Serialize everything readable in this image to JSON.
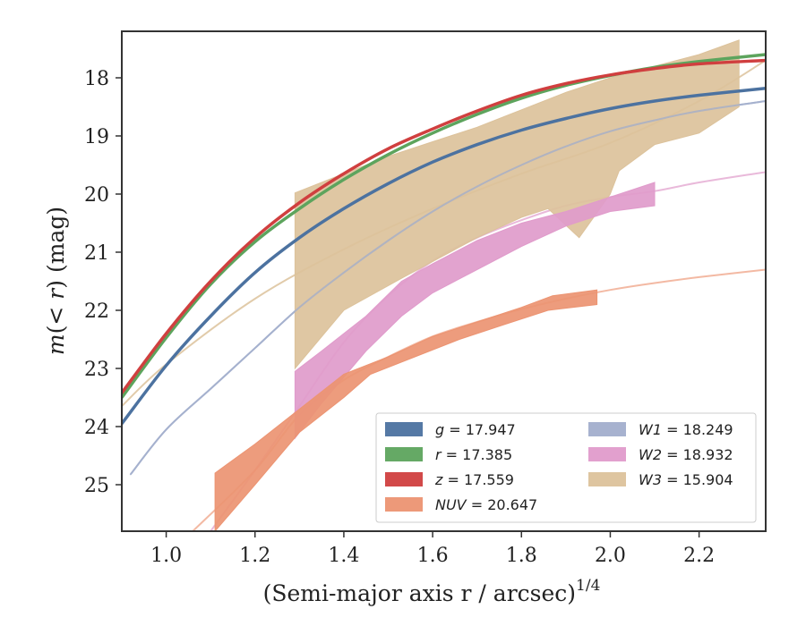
{
  "chart_data": {
    "type": "line",
    "xlabel": "(Semi-major axis r / arcsec)",
    "xlabel_superscript": "1/4",
    "ylabel_mag": "m",
    "ylabel_lt": "(< ",
    "ylabel_r": "r",
    "ylabel_tail": ") (mag)",
    "xlim": [
      0.9,
      2.35
    ],
    "ylim": [
      25.8,
      17.2
    ],
    "y_inverted": true,
    "xticks": [
      1.0,
      1.2,
      1.4,
      1.6,
      1.8,
      2.0,
      2.2
    ],
    "xtick_labels": [
      "1.0",
      "1.2",
      "1.4",
      "1.6",
      "1.8",
      "2.0",
      "2.2"
    ],
    "yticks": [
      18,
      19,
      20,
      21,
      22,
      23,
      24,
      25
    ],
    "ytick_labels": [
      "18",
      "19",
      "20",
      "21",
      "22",
      "23",
      "24",
      "25"
    ],
    "grid": false,
    "legend_position": "lower-right",
    "legend": [
      {
        "key": "g",
        "label": "g = 17.947",
        "color": "#4c72a0"
      },
      {
        "key": "r",
        "label": "r = 17.385",
        "color": "#5da45d"
      },
      {
        "key": "z",
        "label": "z = 17.559",
        "color": "#d03f3f"
      },
      {
        "key": "NUV",
        "label": "NUV = 20.647",
        "color": "#ec9472"
      },
      {
        "key": "W1",
        "label": "W1 = 18.249",
        "color": "#a2aecc"
      },
      {
        "key": "W2",
        "label": "W2 = 18.932",
        "color": "#e09bcb"
      },
      {
        "key": "W3",
        "label": "W3 = 15.904",
        "color": "#dcc29b"
      }
    ],
    "curves": [
      {
        "name": "W3",
        "color": "#dcc29b",
        "points": [
          [
            0.9,
            23.65
          ],
          [
            1.0,
            22.93
          ],
          [
            1.2,
            21.8
          ],
          [
            1.4,
            20.95
          ],
          [
            1.6,
            20.25
          ],
          [
            1.8,
            19.65
          ],
          [
            2.0,
            19.12
          ],
          [
            2.2,
            18.4
          ],
          [
            2.35,
            17.7
          ]
        ]
      },
      {
        "name": "W1",
        "color": "#a2aecc",
        "points": [
          [
            0.92,
            24.82
          ],
          [
            1.0,
            24.05
          ],
          [
            1.1,
            23.35
          ],
          [
            1.2,
            22.65
          ],
          [
            1.3,
            21.95
          ],
          [
            1.4,
            21.35
          ],
          [
            1.5,
            20.8
          ],
          [
            1.6,
            20.3
          ],
          [
            1.7,
            19.87
          ],
          [
            1.8,
            19.5
          ],
          [
            1.9,
            19.18
          ],
          [
            2.0,
            18.92
          ],
          [
            2.1,
            18.73
          ],
          [
            2.2,
            18.57
          ],
          [
            2.35,
            18.4
          ]
        ]
      },
      {
        "name": "W2",
        "color": "#e09bcb",
        "points": [
          [
            1.1,
            25.8
          ],
          [
            1.2,
            24.75
          ],
          [
            1.3,
            23.65
          ],
          [
            1.4,
            22.55
          ],
          [
            1.5,
            21.75
          ],
          [
            1.6,
            21.15
          ],
          [
            1.7,
            20.75
          ],
          [
            1.8,
            20.45
          ],
          [
            1.9,
            20.2
          ],
          [
            2.0,
            20.05
          ],
          [
            2.1,
            19.95
          ],
          [
            2.2,
            19.8
          ],
          [
            2.35,
            19.62
          ]
        ]
      },
      {
        "name": "NUV",
        "color": "#ec9472",
        "points": [
          [
            1.06,
            25.8
          ],
          [
            1.2,
            24.75
          ],
          [
            1.3,
            23.8
          ],
          [
            1.4,
            23.2
          ],
          [
            1.5,
            22.8
          ],
          [
            1.6,
            22.45
          ],
          [
            1.7,
            22.2
          ],
          [
            1.8,
            21.98
          ],
          [
            1.9,
            21.8
          ],
          [
            2.0,
            21.65
          ],
          [
            2.1,
            21.53
          ],
          [
            2.2,
            21.43
          ],
          [
            2.35,
            21.3
          ]
        ]
      },
      {
        "name": "g",
        "color": "#4c72a0",
        "points": [
          [
            0.9,
            23.95
          ],
          [
            1.0,
            22.95
          ],
          [
            1.1,
            22.1
          ],
          [
            1.2,
            21.35
          ],
          [
            1.3,
            20.75
          ],
          [
            1.4,
            20.25
          ],
          [
            1.5,
            19.82
          ],
          [
            1.6,
            19.45
          ],
          [
            1.7,
            19.15
          ],
          [
            1.8,
            18.9
          ],
          [
            1.9,
            18.7
          ],
          [
            2.0,
            18.53
          ],
          [
            2.1,
            18.4
          ],
          [
            2.2,
            18.3
          ],
          [
            2.35,
            18.18
          ]
        ]
      },
      {
        "name": "r",
        "color": "#5da45d",
        "points": [
          [
            0.9,
            23.5
          ],
          [
            1.0,
            22.47
          ],
          [
            1.1,
            21.55
          ],
          [
            1.2,
            20.82
          ],
          [
            1.3,
            20.25
          ],
          [
            1.4,
            19.75
          ],
          [
            1.5,
            19.32
          ],
          [
            1.6,
            18.95
          ],
          [
            1.7,
            18.63
          ],
          [
            1.8,
            18.35
          ],
          [
            1.9,
            18.13
          ],
          [
            2.0,
            17.96
          ],
          [
            2.1,
            17.82
          ],
          [
            2.2,
            17.72
          ],
          [
            2.35,
            17.6
          ]
        ]
      },
      {
        "name": "z",
        "color": "#d03f3f",
        "points": [
          [
            0.9,
            23.42
          ],
          [
            1.0,
            22.4
          ],
          [
            1.1,
            21.5
          ],
          [
            1.2,
            20.75
          ],
          [
            1.3,
            20.15
          ],
          [
            1.4,
            19.65
          ],
          [
            1.5,
            19.22
          ],
          [
            1.6,
            18.88
          ],
          [
            1.7,
            18.57
          ],
          [
            1.8,
            18.3
          ],
          [
            1.9,
            18.1
          ],
          [
            2.0,
            17.95
          ],
          [
            2.1,
            17.84
          ],
          [
            2.2,
            17.76
          ],
          [
            2.35,
            17.7
          ]
        ]
      }
    ],
    "bands": [
      {
        "name": "W3",
        "color": "#dcc29b",
        "upper": [
          [
            1.29,
            19.98
          ],
          [
            1.4,
            19.65
          ],
          [
            1.5,
            19.35
          ],
          [
            1.6,
            19.1
          ],
          [
            1.7,
            18.85
          ],
          [
            1.8,
            18.55
          ],
          [
            1.9,
            18.25
          ],
          [
            2.0,
            18.0
          ],
          [
            2.1,
            17.8
          ],
          [
            2.2,
            17.6
          ],
          [
            2.29,
            17.35
          ]
        ],
        "lower": [
          [
            1.29,
            23.0
          ],
          [
            1.4,
            22.0
          ],
          [
            1.53,
            21.45
          ],
          [
            1.7,
            20.75
          ],
          [
            1.8,
            20.4
          ],
          [
            1.86,
            20.25
          ],
          [
            1.93,
            20.75
          ],
          [
            2.0,
            20.0
          ],
          [
            2.02,
            19.6
          ],
          [
            2.1,
            19.15
          ],
          [
            2.2,
            18.95
          ],
          [
            2.29,
            18.5
          ]
        ]
      },
      {
        "name": "W2",
        "color": "#e09bcb",
        "upper": [
          [
            1.29,
            23.05
          ],
          [
            1.35,
            22.7
          ],
          [
            1.45,
            22.1
          ],
          [
            1.53,
            21.5
          ],
          [
            1.6,
            21.2
          ],
          [
            1.7,
            20.8
          ],
          [
            1.8,
            20.5
          ],
          [
            1.9,
            20.3
          ],
          [
            2.0,
            20.05
          ],
          [
            2.1,
            19.8
          ]
        ],
        "lower": [
          [
            1.29,
            24.2
          ],
          [
            1.35,
            23.6
          ],
          [
            1.45,
            22.7
          ],
          [
            1.53,
            22.1
          ],
          [
            1.6,
            21.7
          ],
          [
            1.7,
            21.3
          ],
          [
            1.8,
            20.9
          ],
          [
            1.9,
            20.55
          ],
          [
            2.0,
            20.3
          ],
          [
            2.1,
            20.2
          ]
        ]
      },
      {
        "name": "NUV",
        "color": "#ec9472",
        "upper": [
          [
            1.11,
            24.8
          ],
          [
            1.2,
            24.3
          ],
          [
            1.3,
            23.7
          ],
          [
            1.4,
            23.1
          ],
          [
            1.5,
            22.8
          ],
          [
            1.6,
            22.45
          ],
          [
            1.7,
            22.2
          ],
          [
            1.8,
            21.95
          ],
          [
            1.87,
            21.75
          ],
          [
            1.97,
            21.65
          ]
        ],
        "lower": [
          [
            1.11,
            25.8
          ],
          [
            1.2,
            25.0
          ],
          [
            1.3,
            24.1
          ],
          [
            1.4,
            23.5
          ],
          [
            1.46,
            23.1
          ],
          [
            1.56,
            22.8
          ],
          [
            1.66,
            22.5
          ],
          [
            1.76,
            22.25
          ],
          [
            1.86,
            22.0
          ],
          [
            1.97,
            21.9
          ]
        ]
      }
    ]
  }
}
